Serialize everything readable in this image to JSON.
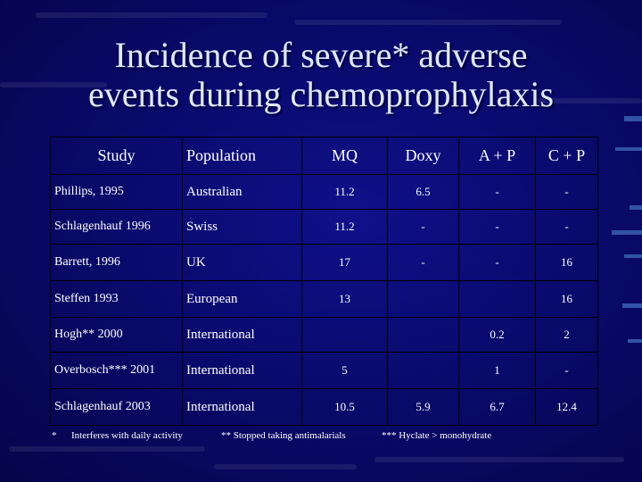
{
  "slide": {
    "title_line1": "Incidence of severe* adverse",
    "title_line2": "events during chemoprophylaxis"
  },
  "table": {
    "headers": [
      "Study",
      "Population",
      "MQ",
      "Doxy",
      "A + P",
      "C + P"
    ],
    "rows": [
      {
        "study": "Phillips, 1995",
        "population": "Australian",
        "mq": "11.2",
        "doxy": "6.5",
        "ap": "-",
        "cp": "-"
      },
      {
        "study": "Schlagenhauf 1996",
        "population": "Swiss",
        "mq": "11.2",
        "doxy": "-",
        "ap": "-",
        "cp": "-"
      },
      {
        "study": "Barrett, 1996",
        "population": "UK",
        "mq": "17",
        "doxy": "-",
        "ap": "-",
        "cp": "16"
      },
      {
        "study": "Steffen 1993",
        "population": "European",
        "mq": "13",
        "doxy": "",
        "ap": "",
        "cp": "16"
      },
      {
        "study": "Hogh** 2000",
        "population": "International",
        "mq": "",
        "doxy": "",
        "ap": "0.2",
        "cp": "2"
      },
      {
        "study": "Overbosch*** 2001",
        "population": "International",
        "mq": "5",
        "doxy": "",
        "ap": "1",
        "cp": "-"
      },
      {
        "study": "Schlagenhauf 2003",
        "population": "International",
        "mq": "10.5",
        "doxy": "5.9",
        "ap": "6.7",
        "cp": "12.4"
      }
    ]
  },
  "footnotes": {
    "star": "*",
    "note1": "Interferes with daily activity",
    "note2": "** Stopped taking antimalarials",
    "note3": "*** Hyclate > monohydrate"
  }
}
